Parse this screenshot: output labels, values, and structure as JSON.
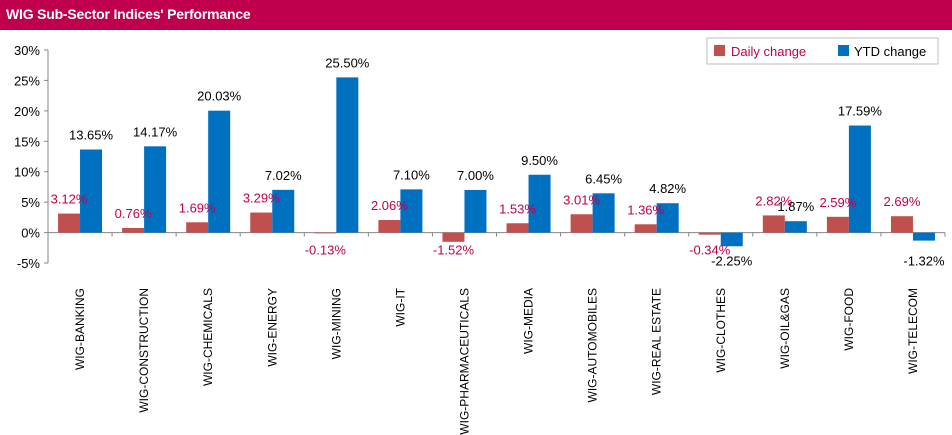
{
  "header": {
    "title": "WIG Sub-Sector Indices' Performance"
  },
  "colors": {
    "header_bg": "#c0004d",
    "daily": "#c0504d",
    "ytd": "#0070c0",
    "daily_label": "#c0004d"
  },
  "chart_data": {
    "type": "bar",
    "title": "WIG Sub-Sector Indices' Performance",
    "categories": [
      "WIG-BANKING",
      "WIG-CONSTRUCTION",
      "WIG-CHEMICALS",
      "WIG-ENERGY",
      "WIG-MINING",
      "WIG-IT",
      "WIG-PHARMACEUTICALS",
      "WIG-MEDIA",
      "WIG-AUTOMOBILES",
      "WIG-REAL ESTATE",
      "WIG-CLOTHES",
      "WIG-OIL&GAS",
      "WIG-FOOD",
      "WIG-TELECOM"
    ],
    "series": [
      {
        "name": "Daily change",
        "values": [
          3.12,
          0.76,
          1.69,
          3.29,
          -0.13,
          2.06,
          -1.52,
          1.53,
          3.01,
          1.36,
          -0.34,
          2.82,
          2.59,
          2.69
        ]
      },
      {
        "name": "YTD change",
        "values": [
          13.65,
          14.17,
          20.03,
          7.02,
          25.5,
          7.1,
          7.0,
          9.5,
          6.45,
          4.82,
          -2.25,
          1.87,
          17.59,
          -1.32
        ]
      }
    ],
    "data_labels": {
      "daily": [
        "3.12%",
        "0.76%",
        "1.69%",
        "3.29%",
        "-0.13%",
        "2.06%",
        "-1.52%",
        "1.53%",
        "3.01%",
        "1.36%",
        "-0.34%",
        "2.82%",
        "2.59%",
        "2.69%"
      ],
      "ytd": [
        "13.65%",
        "14.17%",
        "20.03%",
        "7.02%",
        "25.50%",
        "7.10%",
        "7.00%",
        "9.50%",
        "6.45%",
        "4.82%",
        "-2.25%",
        "1.87%",
        "17.59%",
        "-1.32%"
      ]
    },
    "y_ticks": [
      "30%",
      "25%",
      "20%",
      "15%",
      "10%",
      "5%",
      "0%",
      "-5%"
    ],
    "ylim": [
      -5,
      30
    ],
    "legend_position": "top-right",
    "grid": false
  }
}
